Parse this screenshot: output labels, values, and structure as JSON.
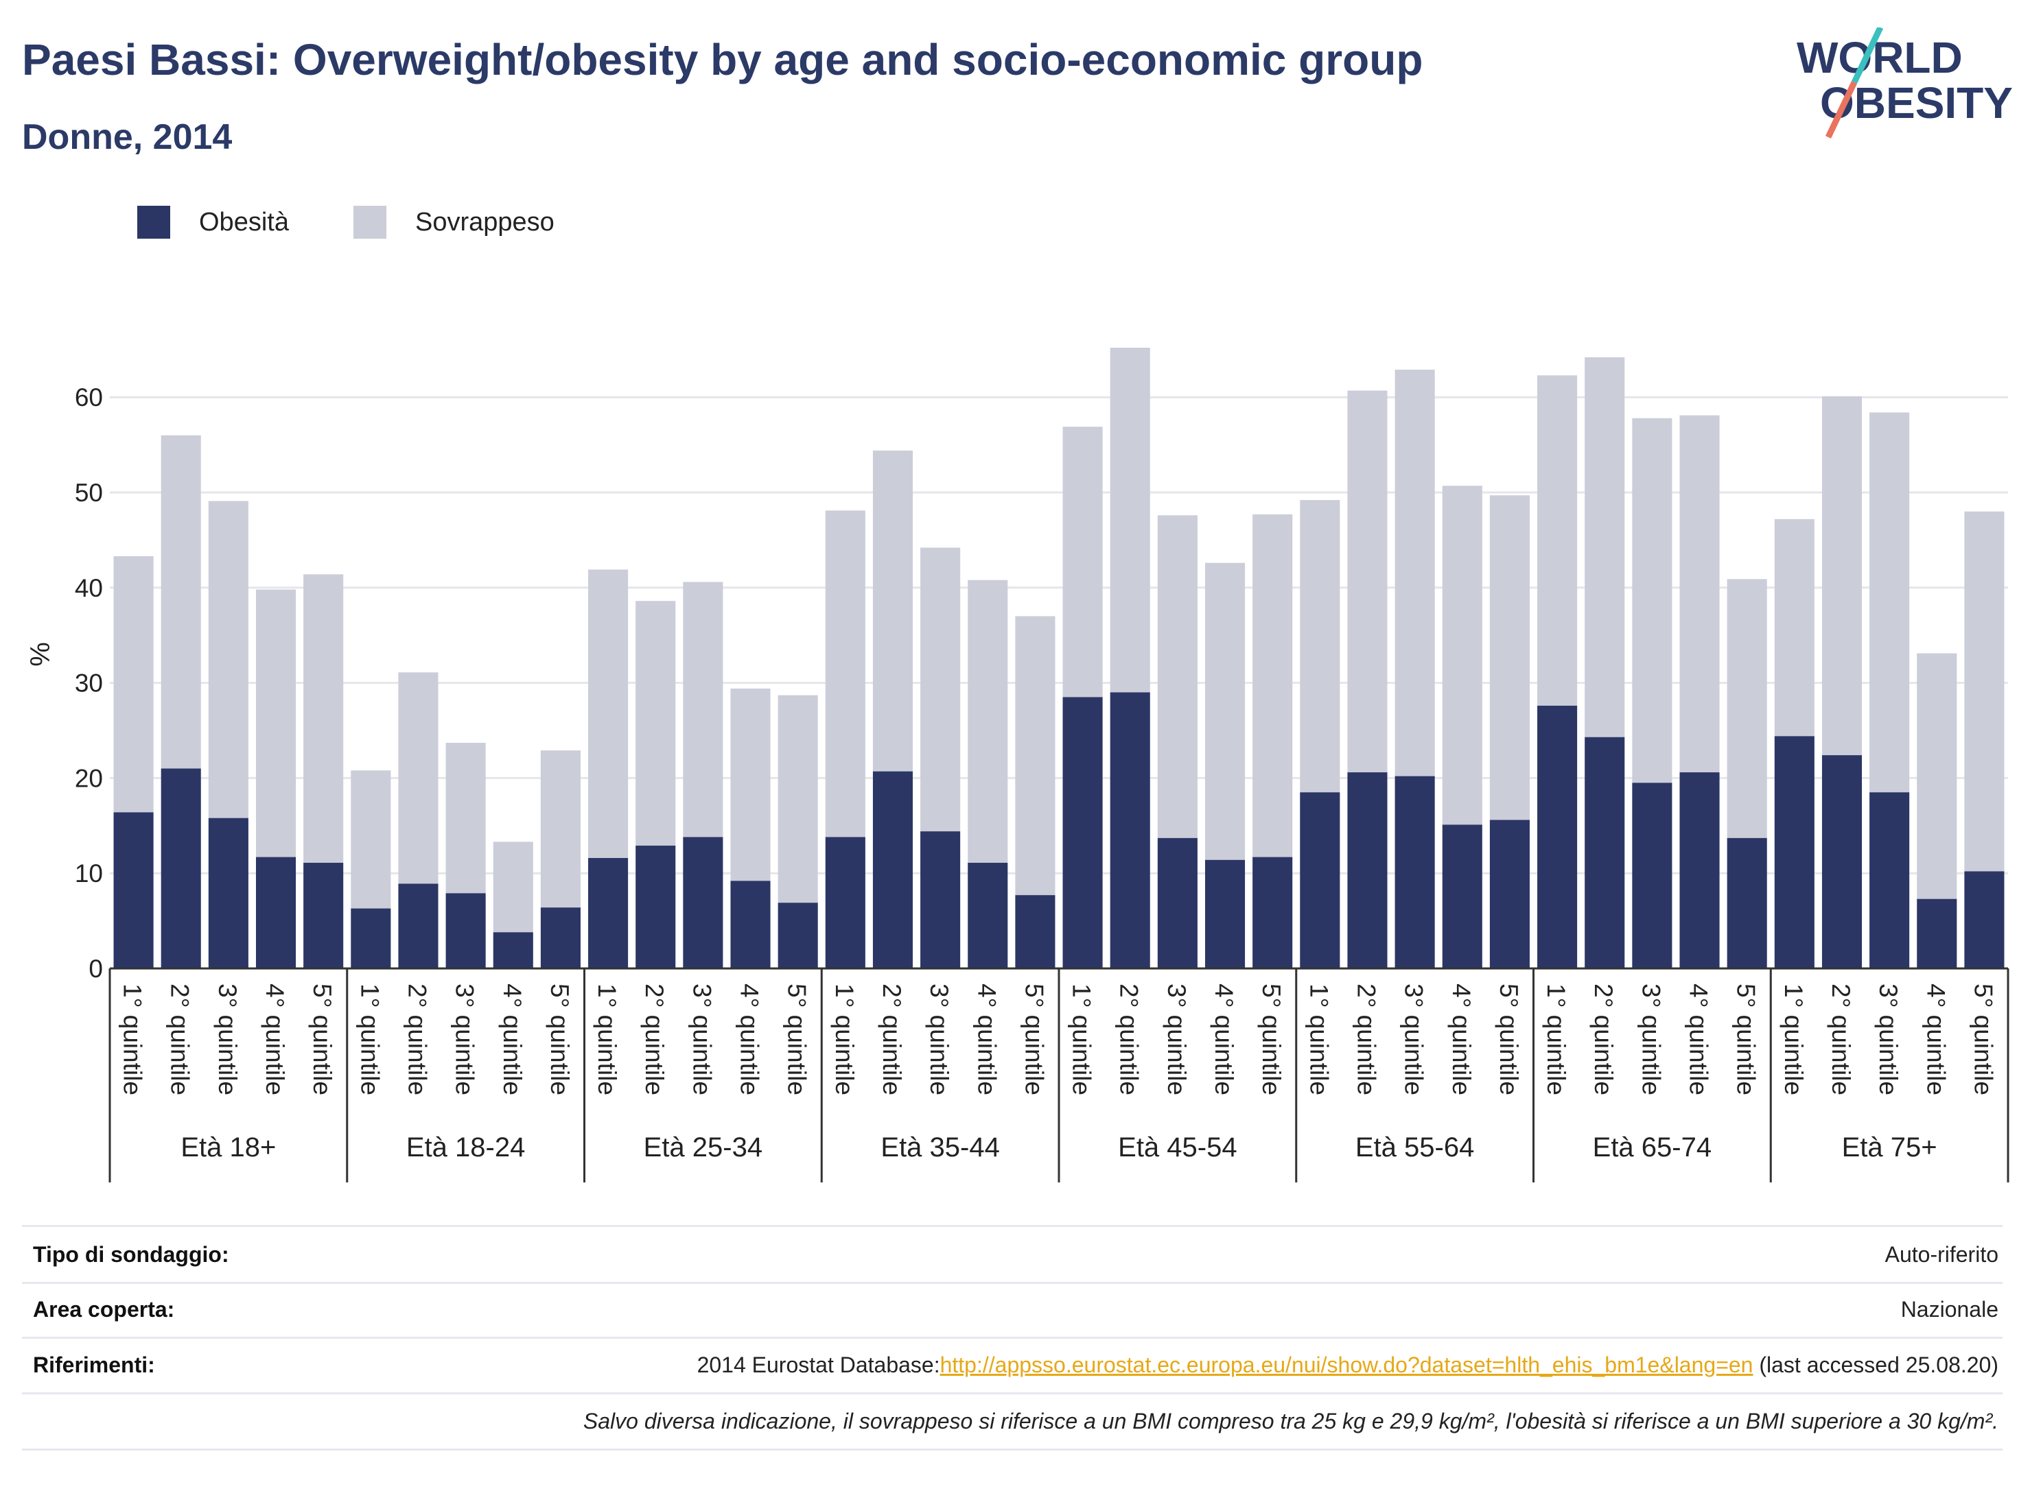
{
  "header": {
    "title": "Paesi Bassi: Overweight/obesity by age and socio-economic group",
    "subtitle": "Donne, 2014"
  },
  "logo": {
    "line1": "WORLD",
    "line2": "OBESITY",
    "colors": {
      "text": "#2b3a67",
      "slash_top": "#3bbfbf",
      "slash_bottom": "#e8735f"
    }
  },
  "legend": {
    "items": [
      {
        "label": "Obesità",
        "color": "#2b3665"
      },
      {
        "label": "Sovrappeso",
        "color": "#cbcdd9"
      }
    ]
  },
  "chart_data": {
    "type": "bar",
    "stacked": true,
    "ylabel": "%",
    "ylim": [
      0,
      67
    ],
    "yticks": [
      0,
      10,
      20,
      30,
      40,
      50,
      60
    ],
    "grid": true,
    "legend_position": "top-left",
    "quintile_labels": [
      "1° quintile",
      "2° quintile",
      "3° quintile",
      "4° quintile",
      "5° quintile"
    ],
    "groups": [
      "Età 18+",
      "Età 18-24",
      "Età 25-34",
      "Età 35-44",
      "Età 45-54",
      "Età 55-64",
      "Età 65-74",
      "Età 75+"
    ],
    "series": [
      {
        "name": "Obesità",
        "color": "#2b3665",
        "values": [
          16.4,
          21.0,
          15.8,
          11.7,
          11.1,
          6.3,
          8.9,
          7.9,
          3.8,
          6.4,
          11.6,
          12.9,
          13.8,
          9.2,
          6.9,
          13.8,
          20.7,
          14.4,
          11.1,
          7.7,
          28.5,
          29.0,
          13.7,
          11.4,
          11.7,
          18.5,
          20.6,
          20.2,
          15.1,
          15.6,
          27.6,
          24.3,
          19.5,
          20.6,
          13.7,
          24.4,
          22.4,
          18.5,
          7.3,
          10.2
        ]
      },
      {
        "name": "Sovrappeso",
        "color": "#cbcdd9",
        "values": [
          26.9,
          35.0,
          33.3,
          28.1,
          30.3,
          14.5,
          22.2,
          15.8,
          9.5,
          16.5,
          30.3,
          25.7,
          26.8,
          20.2,
          21.8,
          34.3,
          33.7,
          29.8,
          29.7,
          29.3,
          28.4,
          36.2,
          33.9,
          31.2,
          36.0,
          30.7,
          40.1,
          42.7,
          35.6,
          34.1,
          34.7,
          39.9,
          38.3,
          37.5,
          27.2,
          22.8,
          37.7,
          39.9,
          25.8,
          37.8
        ]
      }
    ]
  },
  "info": {
    "rows": [
      {
        "label": "Tipo di sondaggio:",
        "value": "Auto-riferito"
      },
      {
        "label": "Area coperta:",
        "value": "Nazionale"
      },
      {
        "label": "Riferimenti:",
        "value_prefix": "2014 Eurostat Database:",
        "link": "http://appsso.eurostat.ec.europa.eu/nui/show.do?dataset=hlth_ehis_bm1e&lang=en",
        "value_suffix": " (last accessed 25.08.20)"
      }
    ],
    "note": "Salvo diversa indicazione, il sovrappeso si riferisce a un BMI compreso tra 25 kg e 29,9 kg/m², l'obesità si riferisce a un BMI superiore a 30 kg/m²."
  }
}
